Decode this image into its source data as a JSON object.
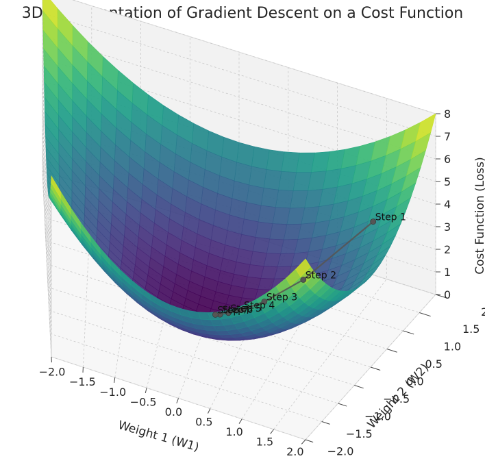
{
  "chart_data": {
    "type": "surface3d",
    "title": "3D Representation of Gradient Descent on a Cost Function",
    "xlabel": "Weight 1 (W1)",
    "ylabel": "Weight 2 (W2)",
    "zlabel": "Cost Function (Loss)",
    "function": "z = x^2 + y^2",
    "xlim": [
      -2,
      2
    ],
    "ylim": [
      -2,
      2
    ],
    "zlim": [
      0,
      8
    ],
    "x_ticks": [
      "−2.0",
      "−1.5",
      "−1.0",
      "−0.5",
      "0.0",
      "0.5",
      "1.0",
      "1.5",
      "2.0"
    ],
    "y_ticks": [
      "−2.0",
      "−1.5",
      "−1.0",
      "−0.5",
      "0.0",
      "0.5",
      "1.0",
      "1.5",
      "2.0"
    ],
    "z_ticks": [
      "0",
      "1",
      "2",
      "3",
      "4",
      "5",
      "6",
      "7",
      "8"
    ],
    "colormap": "viridis",
    "grid": true,
    "path": {
      "color": "#555555",
      "points": [
        {
          "label": "Step 1",
          "x": 1.6,
          "y": 1.2,
          "z": 4.0
        },
        {
          "label": "Step 2",
          "x": 0.96,
          "y": 0.72,
          "z": 1.44
        },
        {
          "label": "Step 3",
          "x": 0.58,
          "y": 0.43,
          "z": 0.52
        },
        {
          "label": "Step 4",
          "x": 0.35,
          "y": 0.26,
          "z": 0.19
        },
        {
          "label": "Step 5",
          "x": 0.21,
          "y": 0.16,
          "z": 0.07
        },
        {
          "label": "Step 6",
          "x": 0.12,
          "y": 0.09,
          "z": 0.02
        },
        {
          "label": "Step 7",
          "x": 0.07,
          "y": 0.06,
          "z": 0.01
        }
      ]
    }
  }
}
